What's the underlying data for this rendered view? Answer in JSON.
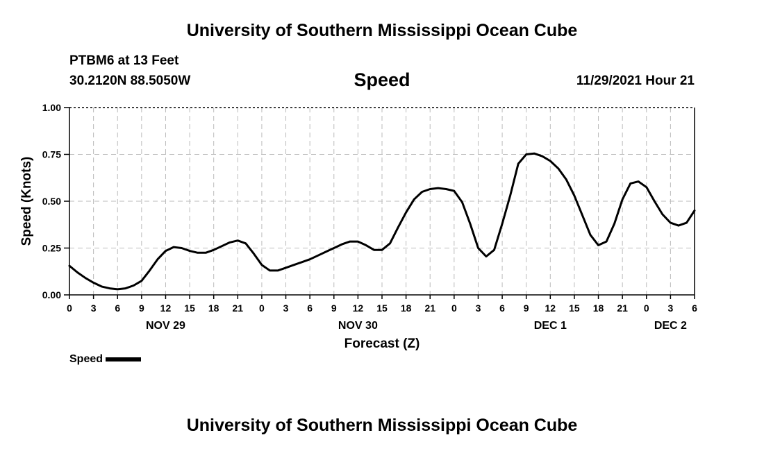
{
  "page": {
    "header_title": "University of Southern Mississippi Ocean Cube",
    "footer_title": "University of Southern Mississippi Ocean Cube",
    "station": "PTBM6 at 13 Feet",
    "coordinates": "30.2120N  88.5050W",
    "subtitle": "Speed",
    "datetime": "11/29/2021 Hour 21",
    "legend_label": "Speed"
  },
  "chart_data": {
    "type": "line",
    "title": "Speed",
    "xlabel": "Forecast (Z)",
    "ylabel": "Speed (Knots)",
    "ylim": [
      0,
      1.0
    ],
    "xlim": [
      0,
      78
    ],
    "x_unit": "hours since NOV 29 00Z",
    "grid": true,
    "y_ticks": [
      0,
      0.25,
      0.5,
      0.75,
      1.0
    ],
    "y_tick_labels": [
      "0.00",
      "0.25",
      "0.50",
      "0.75",
      "1.00"
    ],
    "x_ticks": [
      0,
      3,
      6,
      9,
      12,
      15,
      18,
      21,
      24,
      27,
      30,
      33,
      36,
      39,
      42,
      45,
      48,
      51,
      54,
      57,
      60,
      63,
      66,
      69,
      72,
      75,
      78
    ],
    "x_tick_labels": [
      "0",
      "3",
      "6",
      "9",
      "12",
      "15",
      "18",
      "21",
      "0",
      "3",
      "6",
      "9",
      "12",
      "15",
      "18",
      "21",
      "0",
      "3",
      "6",
      "9",
      "12",
      "15",
      "18",
      "21",
      "0",
      "3",
      "6"
    ],
    "day_labels": [
      {
        "x": 12,
        "label": "NOV 29"
      },
      {
        "x": 36,
        "label": "NOV 30"
      },
      {
        "x": 60,
        "label": "DEC 1"
      },
      {
        "x": 75,
        "label": "DEC 2"
      }
    ],
    "series": [
      {
        "name": "Speed",
        "color": "#000000",
        "x": [
          0,
          1,
          2,
          3,
          4,
          5,
          6,
          7,
          8,
          9,
          10,
          11,
          12,
          13,
          14,
          15,
          16,
          17,
          18,
          19,
          20,
          21,
          22,
          23,
          24,
          25,
          26,
          27,
          28,
          29,
          30,
          31,
          32,
          33,
          34,
          35,
          36,
          37,
          38,
          39,
          40,
          41,
          42,
          43,
          44,
          45,
          46,
          47,
          48,
          49,
          50,
          51,
          52,
          53,
          54,
          55,
          56,
          57,
          58,
          59,
          60,
          61,
          62,
          63,
          64,
          65,
          66,
          67,
          68,
          69,
          70,
          71,
          72,
          73,
          74,
          75,
          76,
          77,
          78
        ],
        "values": [
          0.155,
          0.12,
          0.09,
          0.065,
          0.045,
          0.035,
          0.03,
          0.035,
          0.05,
          0.075,
          0.13,
          0.19,
          0.235,
          0.255,
          0.25,
          0.235,
          0.225,
          0.225,
          0.24,
          0.26,
          0.28,
          0.29,
          0.275,
          0.22,
          0.16,
          0.13,
          0.13,
          0.145,
          0.16,
          0.175,
          0.19,
          0.21,
          0.23,
          0.25,
          0.27,
          0.285,
          0.285,
          0.265,
          0.24,
          0.24,
          0.275,
          0.36,
          0.44,
          0.51,
          0.55,
          0.565,
          0.57,
          0.565,
          0.555,
          0.495,
          0.38,
          0.25,
          0.205,
          0.24,
          0.38,
          0.53,
          0.7,
          0.75,
          0.755,
          0.74,
          0.715,
          0.675,
          0.615,
          0.53,
          0.425,
          0.32,
          0.265,
          0.285,
          0.38,
          0.51,
          0.595,
          0.605,
          0.575,
          0.5,
          0.43,
          0.385,
          0.37,
          0.385,
          0.45
        ]
      }
    ]
  }
}
